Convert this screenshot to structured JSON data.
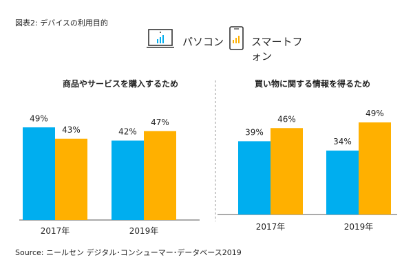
{
  "figure": {
    "title": "図表2: デバイスの利用目的",
    "source": "Source: ニールセン デジタル･コンシューマー･データベース2019"
  },
  "legend": {
    "pc_label": "パソコン",
    "smartphone_label": "スマートフォン"
  },
  "colors": {
    "pc": "#00AEEF",
    "smartphone": "#FFB000",
    "axis": "#555555",
    "divider": "#999999"
  },
  "chart_data": [
    {
      "type": "bar",
      "title": "商品やサービスを購入するため",
      "categories": [
        "2017年",
        "2019年"
      ],
      "series": [
        {
          "name": "パソコン",
          "values": [
            49,
            42
          ],
          "labels": [
            "49%",
            "42%"
          ]
        },
        {
          "name": "スマートフォン",
          "values": [
            43,
            47
          ],
          "labels": [
            "43%",
            "47%"
          ]
        }
      ],
      "ylim": [
        0,
        60
      ],
      "grid": false,
      "legend_position": "top"
    },
    {
      "type": "bar",
      "title": "買い物に関する情報を得るため",
      "categories": [
        "2017年",
        "2019年"
      ],
      "series": [
        {
          "name": "パソコン",
          "values": [
            39,
            34
          ],
          "labels": [
            "39%",
            "34%"
          ]
        },
        {
          "name": "スマートフォン",
          "values": [
            46,
            49
          ],
          "labels": [
            "46%",
            "49%"
          ]
        }
      ],
      "ylim": [
        0,
        60
      ],
      "grid": false,
      "legend_position": "top"
    }
  ]
}
